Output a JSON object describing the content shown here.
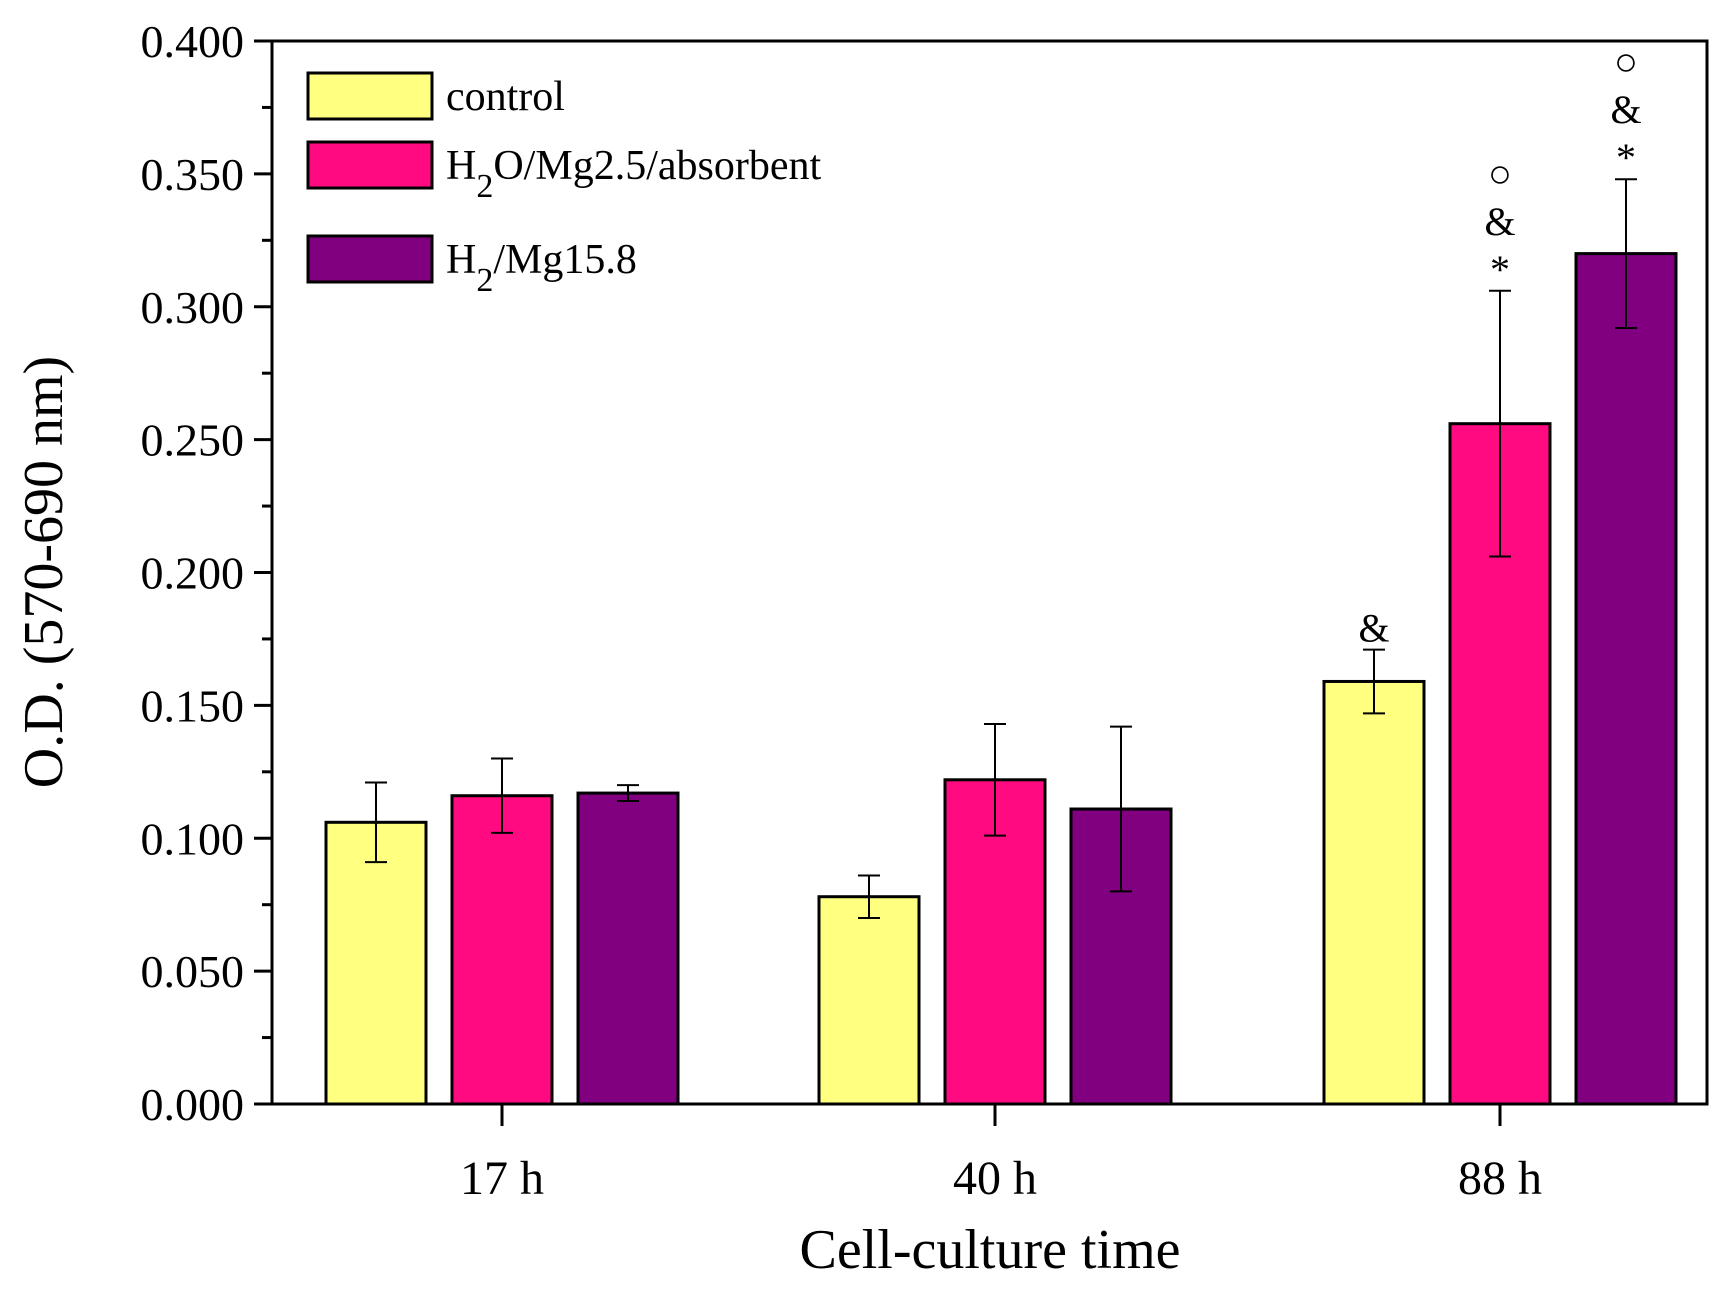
{
  "chart_data": {
    "type": "bar",
    "title": "",
    "xlabel": "Cell-culture time",
    "ylabel": "O.D. (570-690 nm)",
    "ylim": [
      0,
      0.4
    ],
    "yticks": [
      "0.000",
      "0.050",
      "0.100",
      "0.150",
      "0.200",
      "0.250",
      "0.300",
      "0.350",
      "0.400"
    ],
    "categories": [
      "17 h",
      "40 h",
      "88 h"
    ],
    "series": [
      {
        "name": "control",
        "legend": {
          "base": "control",
          "sub": "",
          "rest": ""
        },
        "color": "#ffff80",
        "values": [
          0.106,
          0.078,
          0.159
        ],
        "errors": [
          0.015,
          0.008,
          0.012
        ],
        "annotations": [
          [],
          [],
          [
            "&"
          ]
        ]
      },
      {
        "name": "H2O/Mg2.5/absorbent",
        "legend": {
          "base": "H",
          "sub": "2",
          "rest": "O/Mg2.5/absorbent"
        },
        "color": "#ff0a80",
        "values": [
          0.116,
          0.122,
          0.256
        ],
        "errors": [
          0.014,
          0.021,
          0.05
        ],
        "annotations": [
          [],
          [],
          [
            "*",
            "&",
            "○"
          ]
        ]
      },
      {
        "name": "H2/Mg15.8",
        "legend": {
          "base": "H",
          "sub": "2",
          "rest": "/Mg15.8"
        },
        "color": "#800080",
        "values": [
          0.117,
          0.111,
          0.32
        ],
        "errors": [
          0.003,
          0.031,
          0.028
        ],
        "annotations": [
          [],
          [],
          [
            "*",
            "&",
            "○"
          ]
        ]
      }
    ],
    "legend_position": "top-left",
    "grid": false
  }
}
